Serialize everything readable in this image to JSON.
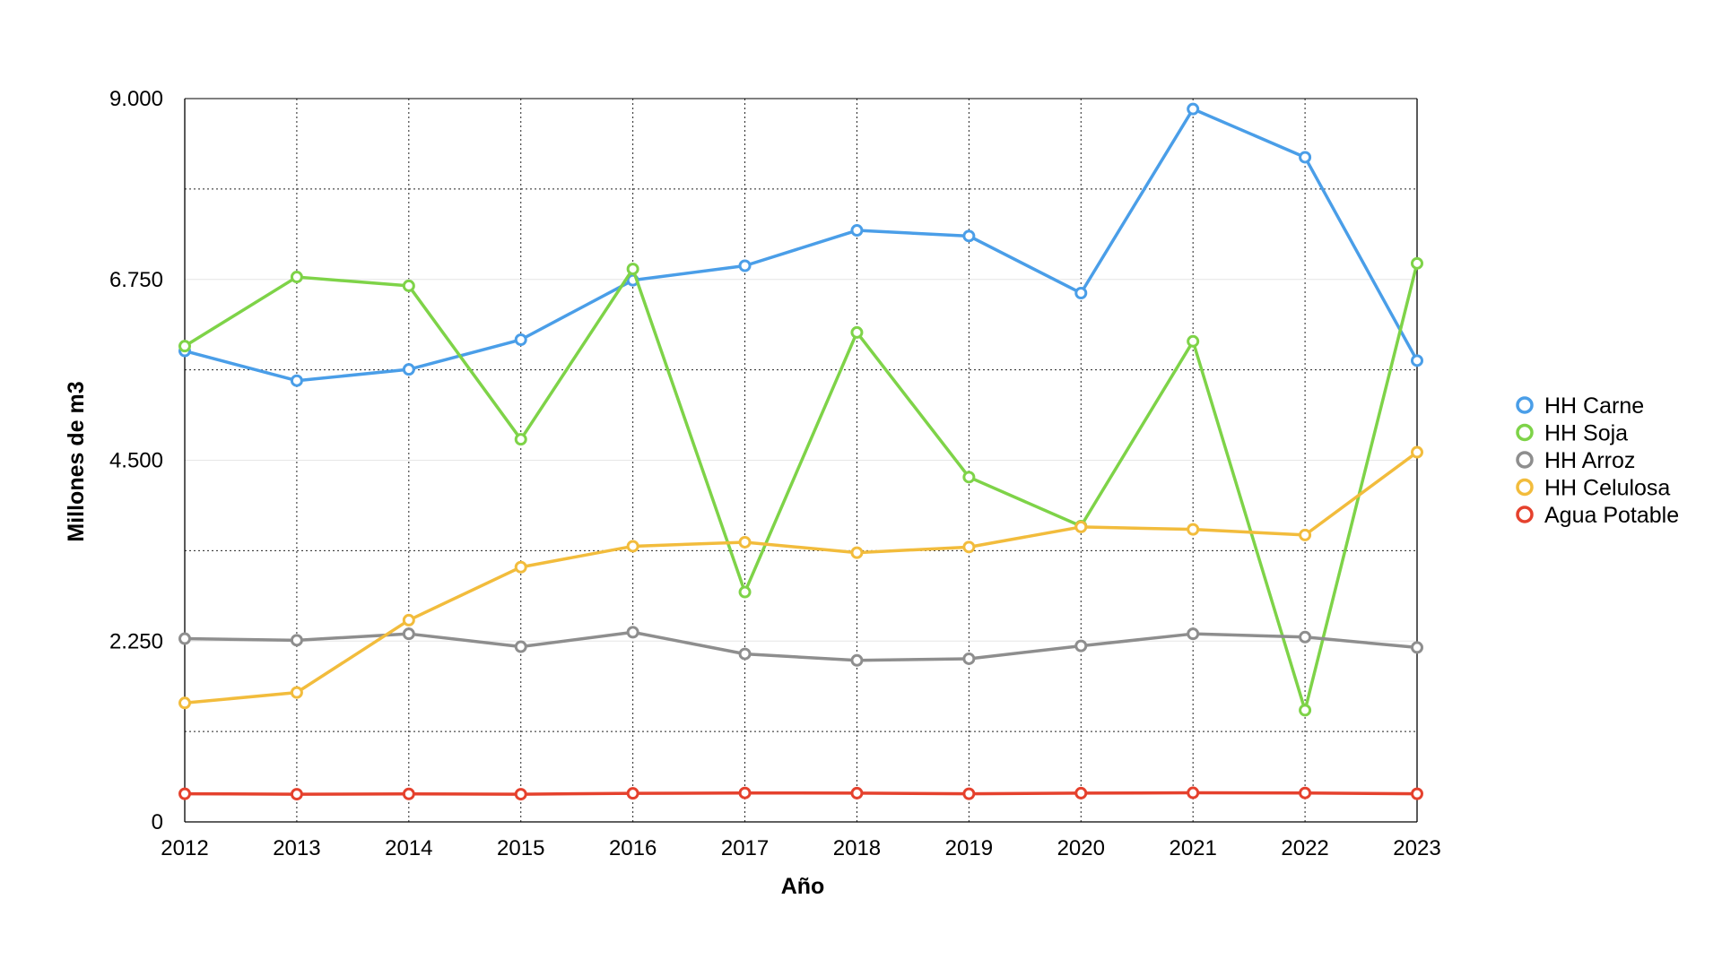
{
  "chart_data": {
    "type": "line",
    "title": "",
    "xlabel": "Año",
    "ylabel": "Millones de m3",
    "x": [
      "2012",
      "2013",
      "2014",
      "2015",
      "2016",
      "2017",
      "2018",
      "2019",
      "2020",
      "2021",
      "2022",
      "2023"
    ],
    "xlim": [
      2012,
      2023
    ],
    "ylim": [
      0,
      9000
    ],
    "y_ticks": [
      {
        "value": 0,
        "label": "0"
      },
      {
        "value": 2250,
        "label": "2.250"
      },
      {
        "value": 4500,
        "label": "4.500"
      },
      {
        "value": 6750,
        "label": "6.750"
      },
      {
        "value": 9000,
        "label": "9.000"
      }
    ],
    "y_minor_gridlines": [
      1125,
      3375,
      5625,
      7875
    ],
    "grid": true,
    "legend_position": "right",
    "series": [
      {
        "name": "HH Carne",
        "color": "#4a9ee8",
        "values": [
          5860,
          5490,
          5630,
          6000,
          6740,
          6920,
          7360,
          7290,
          6580,
          8870,
          8270,
          5740
        ]
      },
      {
        "name": "HH Soja",
        "color": "#7ed348",
        "values": [
          5920,
          6780,
          6670,
          4760,
          6880,
          2860,
          6090,
          4290,
          3680,
          5980,
          1390,
          6950
        ]
      },
      {
        "name": "HH Arroz",
        "color": "#8e8e8e",
        "values": [
          2280,
          2260,
          2340,
          2180,
          2360,
          2090,
          2010,
          2030,
          2190,
          2340,
          2300,
          2170
        ]
      },
      {
        "name": "HH Celulosa",
        "color": "#f2bc3c",
        "values": [
          1480,
          1610,
          2510,
          3170,
          3430,
          3480,
          3350,
          3420,
          3670,
          3640,
          3570,
          4600
        ]
      },
      {
        "name": "Agua Potable",
        "color": "#e5412d",
        "values": [
          350,
          345,
          348,
          345,
          355,
          360,
          358,
          350,
          358,
          362,
          360,
          350
        ]
      }
    ]
  }
}
